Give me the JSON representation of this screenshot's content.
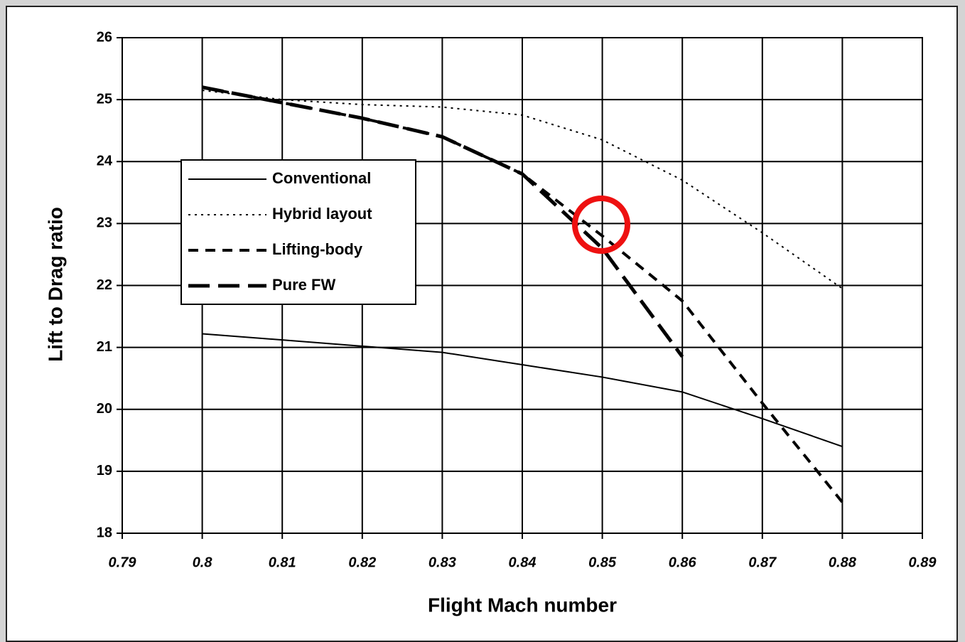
{
  "chart_data": {
    "type": "line",
    "xlabel": "Flight Mach number",
    "ylabel": "Lift to Drag ratio",
    "x": [
      0.8,
      0.81,
      0.82,
      0.83,
      0.84,
      0.85,
      0.86,
      0.87,
      0.88
    ],
    "series": [
      {
        "name": "Conventional",
        "color": "#000000",
        "values": [
          21.22,
          21.12,
          21.02,
          20.92,
          20.72,
          20.52,
          20.28,
          19.85,
          19.4
        ]
      },
      {
        "name": "Hybrid layout",
        "color": "#000000",
        "values": [
          25.15,
          25.0,
          24.92,
          24.88,
          24.75,
          24.35,
          23.7,
          22.85,
          21.95
        ]
      },
      {
        "name": "Lifting-body",
        "color": "#000000",
        "values": [
          25.2,
          24.95,
          24.7,
          24.4,
          23.8,
          22.8,
          21.75,
          20.1,
          18.5
        ]
      },
      {
        "name": "Pure FW",
        "color": "#000000",
        "values": [
          25.2,
          24.95,
          24.7,
          24.4,
          23.8,
          22.6,
          20.85,
          null,
          null
        ]
      }
    ],
    "xlim": [
      0.79,
      0.89
    ],
    "xticks": [
      0.79,
      0.8,
      0.81,
      0.82,
      0.83,
      0.84,
      0.85,
      0.86,
      0.87,
      0.88,
      0.89
    ],
    "ylim": [
      18,
      26
    ],
    "yticks": [
      18,
      19,
      20,
      21,
      22,
      23,
      24,
      25,
      26
    ],
    "grid": true,
    "legend": "upper left"
  }
}
